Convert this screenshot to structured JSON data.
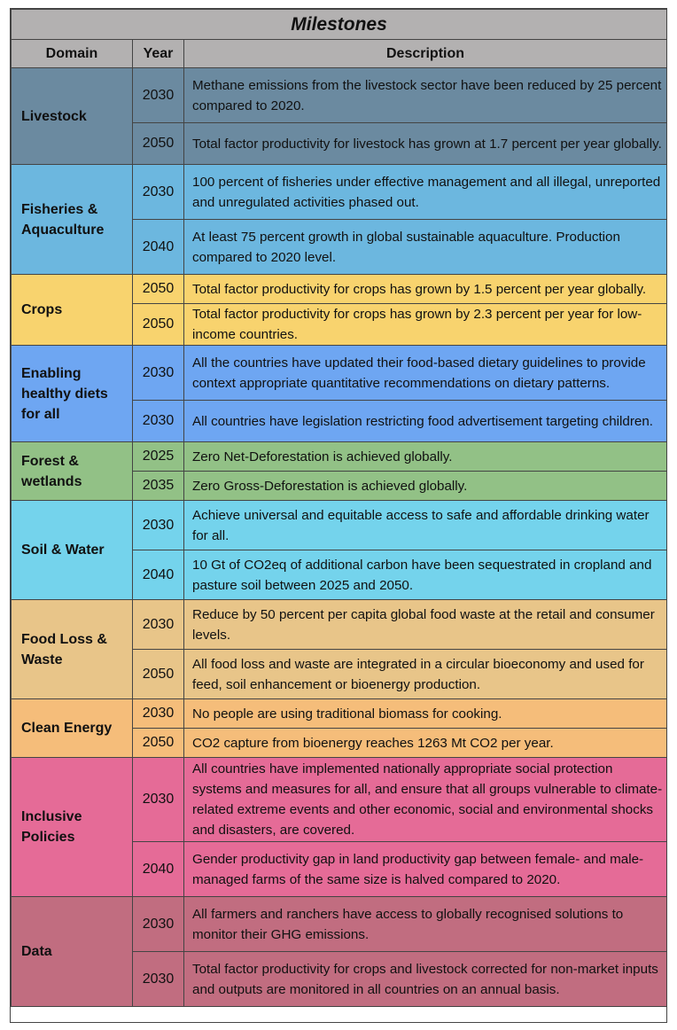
{
  "table": {
    "title": "Milestones",
    "headers": {
      "domain": "Domain",
      "year": "Year",
      "description": "Description"
    },
    "groups": [
      {
        "domain": "Livestock",
        "color": "#6b8aa0",
        "rows": [
          {
            "year": "2030",
            "desc": "Methane emissions from the livestock sector have been reduced by 25 percent compared to 2020."
          },
          {
            "year": "2050",
            "desc": "Total factor productivity for livestock has grown at 1.7 percent per year globally."
          }
        ]
      },
      {
        "domain": "Fisheries & Aquaculture",
        "color": "#6cb7df",
        "rows": [
          {
            "year": "2030",
            "desc": "100 percent of fisheries under effective management and all illegal, unreported and unregulated activities phased out."
          },
          {
            "year": "2040",
            "desc": "At least 75 percent growth in global sustainable aquaculture. Production compared to 2020 level."
          }
        ]
      },
      {
        "domain": "Crops",
        "color": "#f8d36e",
        "rows": [
          {
            "year": "2050",
            "desc": "Total factor productivity for crops has grown by 1.5 percent per year globally."
          },
          {
            "year": "2050",
            "desc": "Total factor productivity for crops has grown by 2.3 percent per year for low-income countries."
          }
        ]
      },
      {
        "domain": "Enabling healthy diets for all",
        "color": "#6ea6f2",
        "rows": [
          {
            "year": "2030",
            "desc": "All the countries have updated their food-based dietary guidelines to provide context appropriate quantitative recommendations on dietary patterns."
          },
          {
            "year": "2030",
            "desc": "All countries have legislation restricting food advertisement targeting children."
          }
        ]
      },
      {
        "domain": "Forest & wetlands",
        "color": "#92c186",
        "rows": [
          {
            "year": "2025",
            "desc": "Zero Net-Deforestation is achieved globally."
          },
          {
            "year": "2035",
            "desc": "Zero Gross-Deforestation is achieved globally."
          }
        ]
      },
      {
        "domain": "Soil & Water",
        "color": "#74d3ec",
        "rows": [
          {
            "year": "2030",
            "desc": "Achieve universal and equitable access to safe and affordable drinking water for all."
          },
          {
            "year": "2040",
            "desc": "10 Gt of CO2eq of additional carbon have been sequestrated in cropland and pasture soil between 2025 and 2050."
          }
        ]
      },
      {
        "domain": "Food Loss & Waste",
        "color": "#e8c589",
        "rows": [
          {
            "year": "2030",
            "desc": "Reduce by 50 percent per capita global food waste at the retail and consumer levels."
          },
          {
            "year": "2050",
            "desc": "All food loss and waste are integrated in a circular bioeconomy and used for feed, soil enhancement or bioenergy production."
          }
        ]
      },
      {
        "domain": "Clean Energy",
        "color": "#f5bd7a",
        "rows": [
          {
            "year": "2030",
            "desc": "No people are using traditional biomass for cooking."
          },
          {
            "year": "2050",
            "desc": "CO2 capture from bioenergy reaches 1263 Mt CO2 per year."
          }
        ]
      },
      {
        "domain": "Inclusive Policies",
        "color": "#e56b97",
        "rows": [
          {
            "year": "2030",
            "desc": "All countries have implemented nationally appropriate social protection systems and measures for all, and ensure that all groups vulnerable to climate-related extreme events and other economic, social and environmental shocks and disasters, are covered."
          },
          {
            "year": "2040",
            "desc": "Gender productivity gap in land productivity gap between female- and male-managed farms of the same size is halved compared to 2020."
          }
        ]
      },
      {
        "domain": "Data",
        "color": "#c16d80",
        "rows": [
          {
            "year": "2030",
            "desc": "All farmers and ranchers have access to globally recognised solutions to monitor their GHG emissions."
          },
          {
            "year": "2030",
            "desc": "Total factor productivity for crops and livestock corrected for non-market inputs and outputs are monitored in all countries on an annual basis."
          }
        ]
      }
    ]
  }
}
